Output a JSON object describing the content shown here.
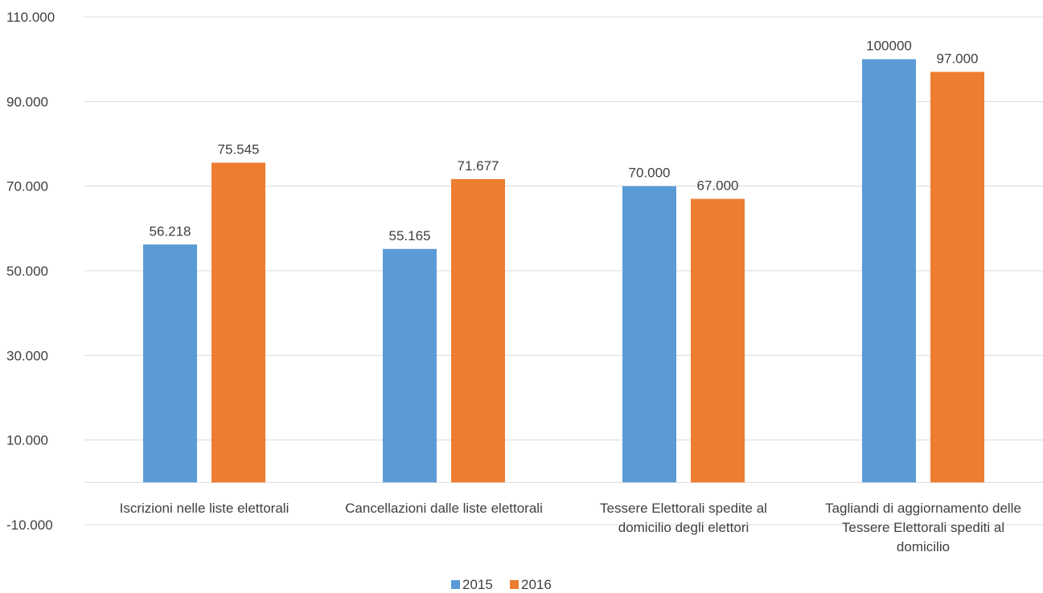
{
  "chart_data": {
    "type": "bar",
    "title": "",
    "xlabel": "",
    "ylabel": "",
    "ylim": [
      -10000,
      110000
    ],
    "yticks": [
      -10000,
      10000,
      30000,
      50000,
      70000,
      90000,
      110000
    ],
    "ytick_labels": [
      "-10.000",
      "10.000",
      "30.000",
      "50.000",
      "70.000",
      "90.000",
      "110.000"
    ],
    "grid": true,
    "legend_position": "bottom",
    "categories": [
      [
        "Iscrizioni nelle liste elettorali"
      ],
      [
        "Cancellazioni dalle liste elettorali"
      ],
      [
        "Tessere Elettorali spedite al",
        "domicilio degli elettori"
      ],
      [
        "Tagliandi di aggiornamento delle",
        "Tessere Elettorali spediti al",
        "domicilio"
      ]
    ],
    "series": [
      {
        "name": "2015",
        "color": "#5b9bd5",
        "values": [
          56218,
          55165,
          70000,
          100000
        ],
        "labels": [
          "56.218",
          "55.165",
          "70.000",
          "100000"
        ]
      },
      {
        "name": "2016",
        "color": "#ed7d31",
        "values": [
          75545,
          71677,
          67000,
          97000
        ],
        "labels": [
          "75.545",
          "71.677",
          "67.000",
          "97.000"
        ]
      }
    ]
  }
}
